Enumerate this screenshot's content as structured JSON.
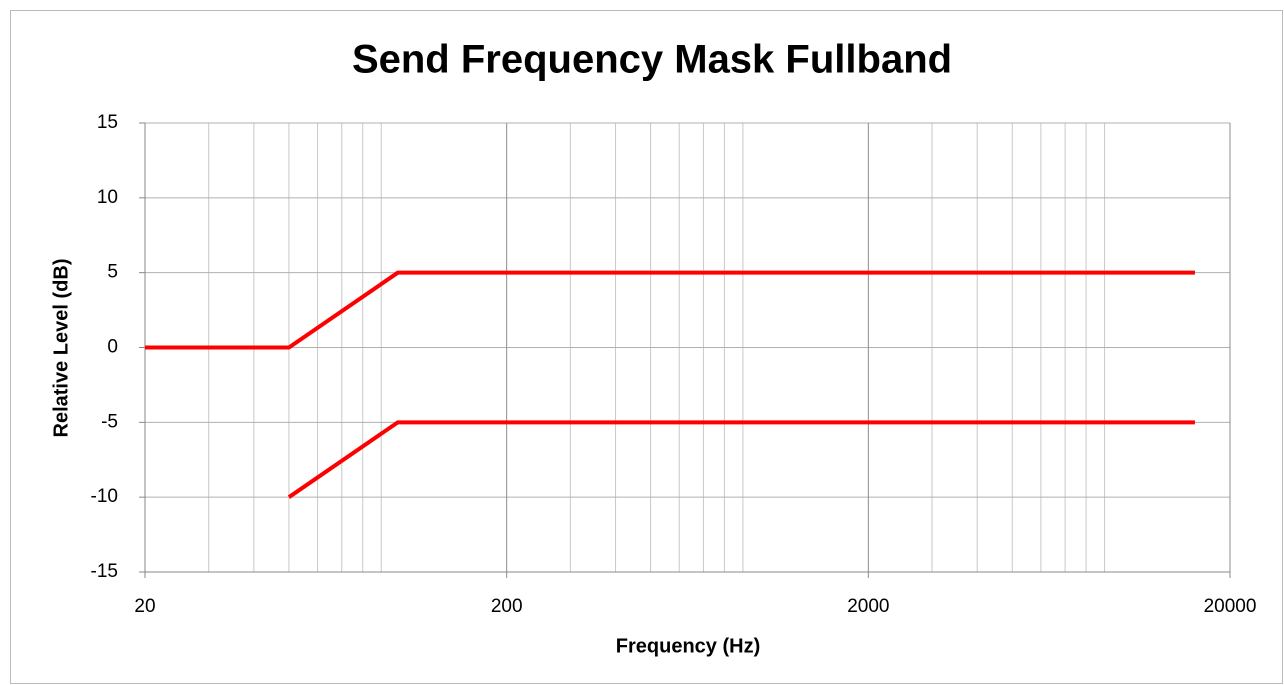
{
  "chart_data": {
    "type": "line",
    "title": "Send Frequency Mask Fullband",
    "x_label": "Frequency (Hz)",
    "y_label": "Relative Level (dB)",
    "xscale": "log",
    "xlim": [
      20,
      20000
    ],
    "xticks": [
      20,
      200,
      2000,
      20000
    ],
    "xminorticks": [
      30,
      40,
      50,
      60,
      70,
      80,
      90,
      300,
      400,
      500,
      600,
      700,
      800,
      900,
      3000,
      4000,
      5000,
      6000,
      7000,
      8000,
      9000
    ],
    "ylim": [
      -15,
      15
    ],
    "yticks": [
      -15,
      -10,
      -5,
      0,
      5,
      10,
      15
    ],
    "grid": true,
    "series": [
      {
        "color": "#ff0000",
        "x": [
          20,
          50,
          100,
          16000
        ],
        "values": [
          0,
          0,
          5,
          5
        ]
      },
      {
        "color": "#ff0000",
        "x": [
          50,
          100,
          16000
        ],
        "values": [
          -10,
          -5,
          -5
        ]
      }
    ]
  }
}
